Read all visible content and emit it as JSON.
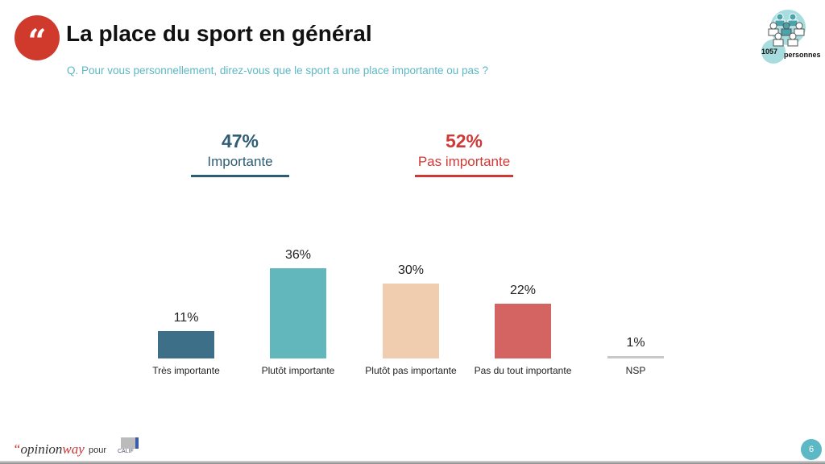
{
  "header": {
    "title": "La place du sport en général",
    "question": "Q. Pour vous personnellement, direz-vous que le sport a une place importante ou pas ?",
    "sample_count": "1057",
    "sample_label": "personnes"
  },
  "summary": [
    {
      "pct": "47%",
      "label": "Importante",
      "color": "#2f5d74"
    },
    {
      "pct": "52%",
      "label": "Pas importante",
      "color": "#d03a36"
    }
  ],
  "chart_data": {
    "type": "bar",
    "categories": [
      "Très importante",
      "Plutôt importante",
      "Plutôt pas importante",
      "Pas du tout importante",
      "NSP"
    ],
    "values": [
      11,
      36,
      30,
      22,
      1
    ],
    "labels": [
      "11%",
      "36%",
      "30%",
      "22%",
      "1%"
    ],
    "colors": [
      "#3d6f89",
      "#62b7bd",
      "#f1cdb0",
      "#d46462",
      "#c8c8c8"
    ],
    "ylim": [
      0,
      40
    ]
  },
  "footer": {
    "brand_prefix": "opinion",
    "brand_suffix": "way",
    "pour": "pour",
    "client": "CALIF",
    "page": "6"
  }
}
